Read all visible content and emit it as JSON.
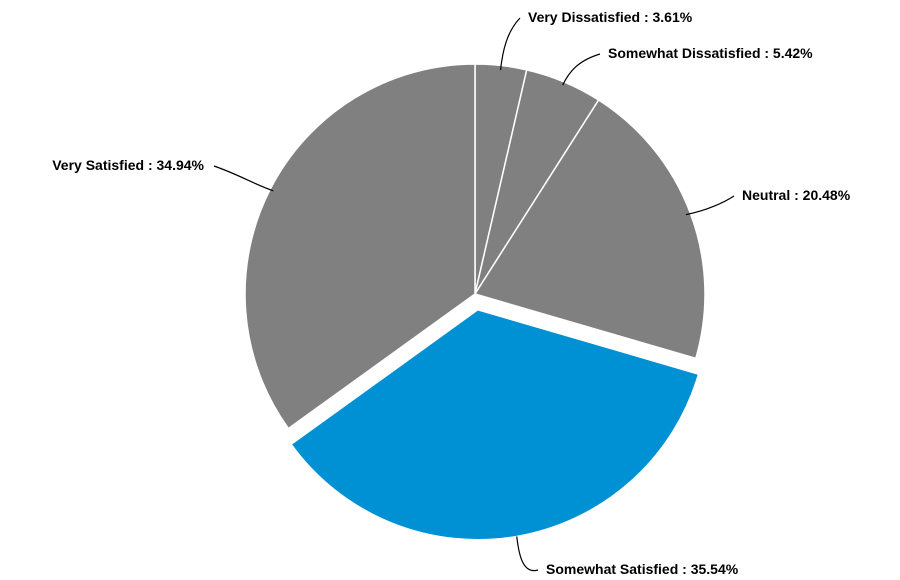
{
  "chart_data": {
    "type": "pie",
    "title": "",
    "start_angle_deg": 0,
    "direction": "clockwise",
    "label_separator": " : ",
    "value_suffix": "%",
    "slices": [
      {
        "name": "Very Dissatisfied",
        "value": 3.61,
        "color": "#808080",
        "exploded": false,
        "value_text": "3.61%"
      },
      {
        "name": "Somewhat Dissatisfied",
        "value": 5.42,
        "color": "#808080",
        "exploded": false,
        "value_text": "5.42%"
      },
      {
        "name": "Neutral",
        "value": 20.48,
        "color": "#808080",
        "exploded": false,
        "value_text": "20.48%"
      },
      {
        "name": "Somewhat Satisfied",
        "value": 35.54,
        "color": "#0090d4",
        "exploded": true,
        "value_text": "35.54%"
      },
      {
        "name": "Very Satisfied",
        "value": 34.94,
        "color": "#808080",
        "exploded": false,
        "value_text": "34.94%"
      }
    ],
    "slice_border_color": "#ffffff",
    "legend": "none"
  }
}
